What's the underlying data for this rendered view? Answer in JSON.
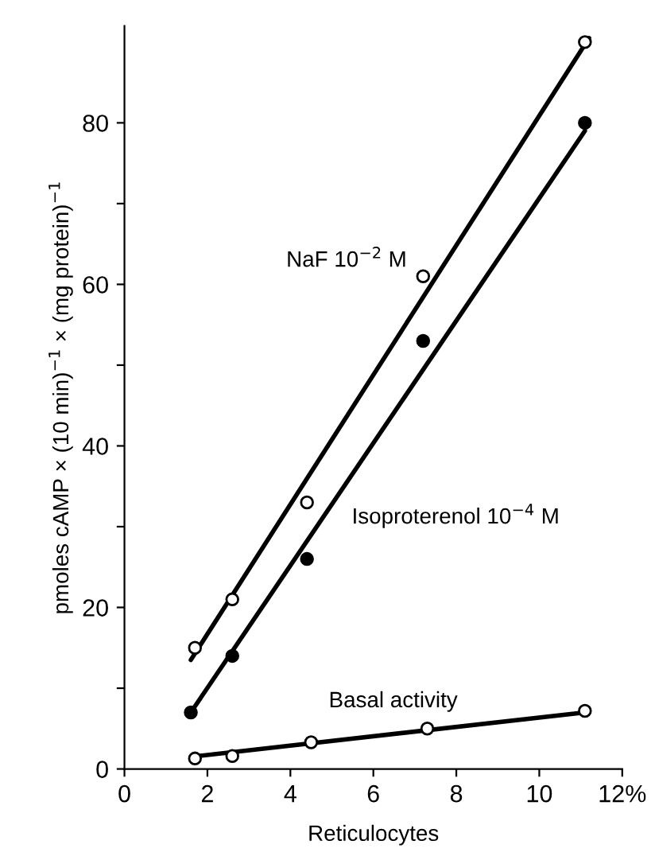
{
  "chart_data": {
    "type": "scatter",
    "xlabel": "Reticulocytes",
    "ylabel": "pmoles cAMP × (10 min)$^{−1}$ × (mg protein)$^{−1}$",
    "xlim": [
      0,
      12
    ],
    "xticks": [
      0,
      2,
      4,
      6,
      8,
      10,
      {
        "value": 12,
        "label": "12%"
      }
    ],
    "ylim": [
      0,
      92
    ],
    "yticks": [
      0,
      {
        "value": 10,
        "label": null
      },
      20,
      {
        "value": 30,
        "label": null
      },
      40,
      {
        "value": 50,
        "label": null
      },
      60,
      {
        "value": 70,
        "label": null
      },
      80
    ],
    "grid": false,
    "legend": false,
    "series": [
      {
        "type": "line",
        "marker": "none",
        "name": "NaF 10$^{−2}$ M",
        "color": "#000000",
        "x": [
          1.6,
          11.2
        ],
        "values": [
          13.5,
          90.5
        ]
      },
      {
        "type": "line",
        "marker": "none",
        "name": "Isoproterenol 10$^{−4}$ M",
        "color": "#000000",
        "x": [
          1.6,
          11.1
        ],
        "values": [
          7,
          79
        ]
      },
      {
        "type": "line",
        "marker": "none",
        "name": "Basal activity",
        "color": "#000000",
        "x": [
          1.6,
          11.1
        ],
        "values": [
          1.5,
          7
        ]
      },
      {
        "marker": "circle",
        "color": "#ffffff",
        "x": [
          1.7,
          2.6,
          4.4,
          7.2,
          11.1
        ],
        "values": [
          15,
          21,
          33,
          61,
          90
        ]
      },
      {
        "marker": "circle",
        "color": "#000000",
        "x": [
          1.6,
          2.6,
          4.4,
          7.2,
          11.1
        ],
        "values": [
          7,
          14,
          26,
          53,
          80
        ]
      },
      {
        "marker": "circle",
        "color": "#ffffff",
        "x": [
          1.7,
          2.6,
          4.5,
          7.3,
          11.1
        ],
        "values": [
          1.3,
          1.6,
          3.3,
          5,
          7.2
        ]
      }
    ]
  }
}
